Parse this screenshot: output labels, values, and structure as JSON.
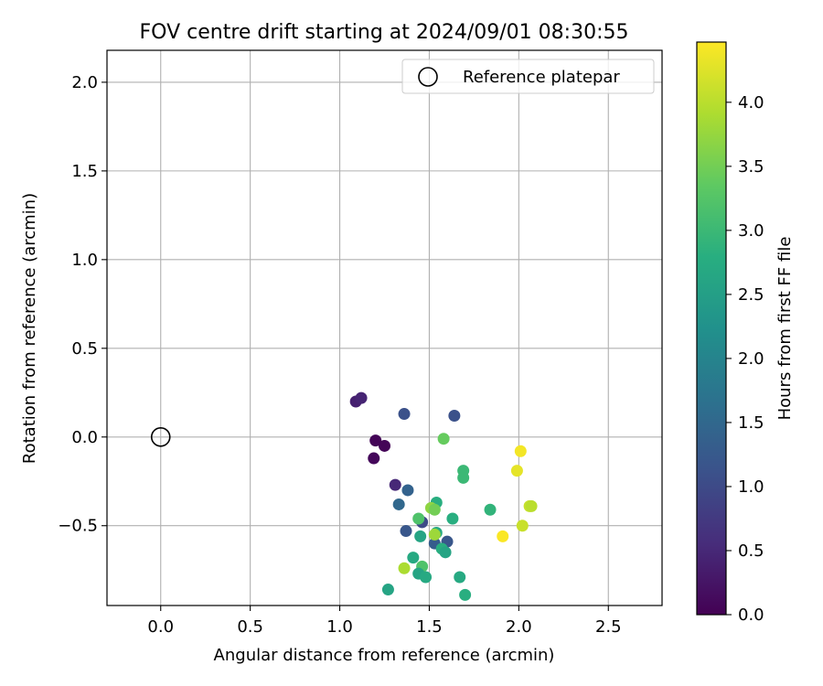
{
  "chart_data": {
    "type": "scatter",
    "title": "FOV centre drift starting at 2024/09/01 08:30:55",
    "xlabel": "Angular distance from reference (arcmin)",
    "ylabel": "Rotation from reference (arcmin)",
    "xlim": [
      -0.3,
      2.8
    ],
    "ylim": [
      -0.95,
      2.18
    ],
    "xticks": [
      0.0,
      0.5,
      1.0,
      1.5,
      2.0,
      2.5
    ],
    "xtick_labels": [
      "0.0",
      "0.5",
      "1.0",
      "1.5",
      "2.0",
      "2.5"
    ],
    "yticks": [
      -0.5,
      0.0,
      0.5,
      1.0,
      1.5,
      2.0
    ],
    "ytick_labels": [
      "−0.5",
      "0.0",
      "0.5",
      "1.0",
      "1.5",
      "2.0"
    ],
    "grid": true,
    "legend": {
      "position": "upper-right",
      "entries": [
        "Reference platepar"
      ]
    },
    "reference_point": {
      "x": 0.0,
      "y": 0.0,
      "marker": "open-circle"
    },
    "colorbar": {
      "label": "Hours from first FF file",
      "colormap": "viridis",
      "range": [
        0.0,
        4.47
      ],
      "ticks": [
        0.0,
        0.5,
        1.0,
        1.5,
        2.0,
        2.5,
        3.0,
        3.5,
        4.0
      ],
      "tick_labels": [
        "0.0",
        "0.5",
        "1.0",
        "1.5",
        "2.0",
        "2.5",
        "3.0",
        "3.5",
        "4.0"
      ]
    },
    "points": [
      {
        "x": 1.09,
        "y": 0.2,
        "h": 0.4
      },
      {
        "x": 1.12,
        "y": 0.22,
        "h": 0.45
      },
      {
        "x": 1.2,
        "y": -0.02,
        "h": 0.05
      },
      {
        "x": 1.25,
        "y": -0.05,
        "h": 0.05
      },
      {
        "x": 1.19,
        "y": -0.12,
        "h": 0.08
      },
      {
        "x": 1.31,
        "y": -0.27,
        "h": 0.5
      },
      {
        "x": 1.36,
        "y": 0.13,
        "h": 1.1
      },
      {
        "x": 1.64,
        "y": 0.12,
        "h": 1.1
      },
      {
        "x": 1.38,
        "y": -0.3,
        "h": 1.4
      },
      {
        "x": 1.33,
        "y": -0.38,
        "h": 1.5
      },
      {
        "x": 1.37,
        "y": -0.53,
        "h": 1.2
      },
      {
        "x": 1.46,
        "y": -0.48,
        "h": 1.0
      },
      {
        "x": 1.53,
        "y": -0.6,
        "h": 1.3
      },
      {
        "x": 1.6,
        "y": -0.59,
        "h": 1.2
      },
      {
        "x": 1.58,
        "y": -0.01,
        "h": 3.4
      },
      {
        "x": 1.69,
        "y": -0.19,
        "h": 3.0
      },
      {
        "x": 1.69,
        "y": -0.23,
        "h": 3.0
      },
      {
        "x": 1.54,
        "y": -0.37,
        "h": 2.8
      },
      {
        "x": 1.51,
        "y": -0.4,
        "h": 3.7
      },
      {
        "x": 1.53,
        "y": -0.41,
        "h": 3.5
      },
      {
        "x": 1.44,
        "y": -0.46,
        "h": 3.2
      },
      {
        "x": 1.63,
        "y": -0.46,
        "h": 2.8
      },
      {
        "x": 1.45,
        "y": -0.56,
        "h": 2.6
      },
      {
        "x": 1.54,
        "y": -0.54,
        "h": 2.7
      },
      {
        "x": 1.53,
        "y": -0.55,
        "h": 3.8
      },
      {
        "x": 1.57,
        "y": -0.63,
        "h": 2.8
      },
      {
        "x": 1.59,
        "y": -0.65,
        "h": 2.6
      },
      {
        "x": 1.84,
        "y": -0.41,
        "h": 2.9
      },
      {
        "x": 1.41,
        "y": -0.68,
        "h": 2.7
      },
      {
        "x": 1.46,
        "y": -0.73,
        "h": 3.2
      },
      {
        "x": 1.36,
        "y": -0.74,
        "h": 3.9
      },
      {
        "x": 1.44,
        "y": -0.77,
        "h": 2.6
      },
      {
        "x": 1.48,
        "y": -0.79,
        "h": 2.7
      },
      {
        "x": 1.67,
        "y": -0.79,
        "h": 2.7
      },
      {
        "x": 1.27,
        "y": -0.86,
        "h": 2.6
      },
      {
        "x": 1.7,
        "y": -0.89,
        "h": 2.8
      },
      {
        "x": 2.01,
        "y": -0.08,
        "h": 4.4
      },
      {
        "x": 1.99,
        "y": -0.19,
        "h": 4.3
      },
      {
        "x": 2.06,
        "y": -0.39,
        "h": 4.1
      },
      {
        "x": 2.07,
        "y": -0.39,
        "h": 4.0
      },
      {
        "x": 2.02,
        "y": -0.5,
        "h": 4.1
      },
      {
        "x": 1.91,
        "y": -0.56,
        "h": 4.45
      }
    ]
  }
}
